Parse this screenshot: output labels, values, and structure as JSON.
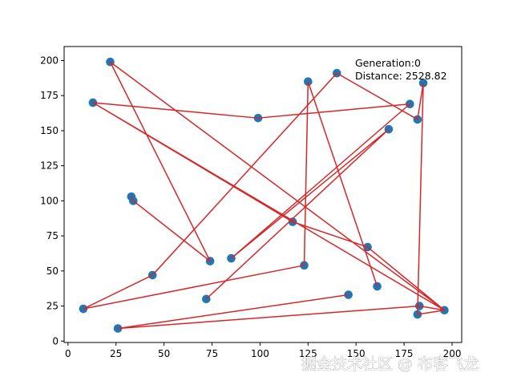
{
  "chart_data": {
    "type": "scatter",
    "title": "",
    "xlabel": "",
    "ylabel": "",
    "xlim": [
      -2,
      205
    ],
    "ylim": [
      -1,
      210
    ],
    "xticks": [
      0,
      25,
      50,
      75,
      100,
      125,
      150,
      175,
      200
    ],
    "yticks": [
      0,
      25,
      50,
      75,
      100,
      125,
      150,
      175,
      200
    ],
    "grid": false,
    "annotations": {
      "generation": "Generation:0",
      "distance": "Distance: 2528.82"
    },
    "series": [
      {
        "kind": "points",
        "color": "#1f77b4",
        "points": [
          [
            22,
            199
          ],
          [
            13,
            170
          ],
          [
            99,
            159
          ],
          [
            178,
            169
          ],
          [
            182,
            158
          ],
          [
            185,
            184
          ],
          [
            140,
            191
          ],
          [
            125,
            185
          ],
          [
            167,
            151
          ],
          [
            117,
            85
          ],
          [
            33,
            103
          ],
          [
            34,
            100
          ],
          [
            74,
            57
          ],
          [
            85,
            59
          ],
          [
            123,
            54
          ],
          [
            156,
            67
          ],
          [
            161,
            39
          ],
          [
            146,
            33
          ],
          [
            44,
            47
          ],
          [
            8,
            23
          ],
          [
            72,
            30
          ],
          [
            26,
            9
          ],
          [
            182,
            19
          ],
          [
            183,
            25
          ],
          [
            196,
            22
          ]
        ]
      },
      {
        "kind": "route",
        "color": "#d62728",
        "path": [
          [
            22,
            199
          ],
          [
            74,
            57
          ],
          [
            34,
            100
          ],
          [
            33,
            103
          ],
          [
            34,
            100
          ],
          [
            74,
            57
          ],
          [
            22,
            199
          ],
          [
            196,
            22
          ],
          [
            182,
            19
          ],
          [
            185,
            184
          ],
          [
            182,
            158
          ],
          [
            140,
            191
          ],
          [
            44,
            47
          ],
          [
            8,
            23
          ],
          [
            123,
            54
          ],
          [
            125,
            185
          ],
          [
            161,
            39
          ],
          [
            125,
            185
          ],
          [
            123,
            54
          ],
          [
            8,
            23
          ],
          [
            44,
            47
          ],
          [
            140,
            191
          ],
          [
            182,
            158
          ],
          [
            185,
            184
          ],
          [
            182,
            19
          ],
          [
            196,
            22
          ],
          [
            13,
            170
          ],
          [
            117,
            85
          ],
          [
            156,
            67
          ],
          [
            196,
            22
          ],
          [
            183,
            25
          ],
          [
            26,
            9
          ],
          [
            146,
            33
          ],
          [
            26,
            9
          ],
          [
            183,
            25
          ],
          [
            196,
            22
          ],
          [
            156,
            67
          ],
          [
            117,
            85
          ],
          [
            13,
            170
          ],
          [
            99,
            159
          ],
          [
            178,
            169
          ],
          [
            85,
            59
          ],
          [
            167,
            151
          ],
          [
            72,
            30
          ],
          [
            167,
            151
          ],
          [
            85,
            59
          ],
          [
            178,
            169
          ],
          [
            99,
            159
          ],
          [
            13,
            170
          ],
          [
            196,
            22
          ],
          [
            22,
            199
          ]
        ]
      }
    ]
  },
  "watermark": {
    "text": "掘金技术社区 @ 布客飞龙"
  }
}
